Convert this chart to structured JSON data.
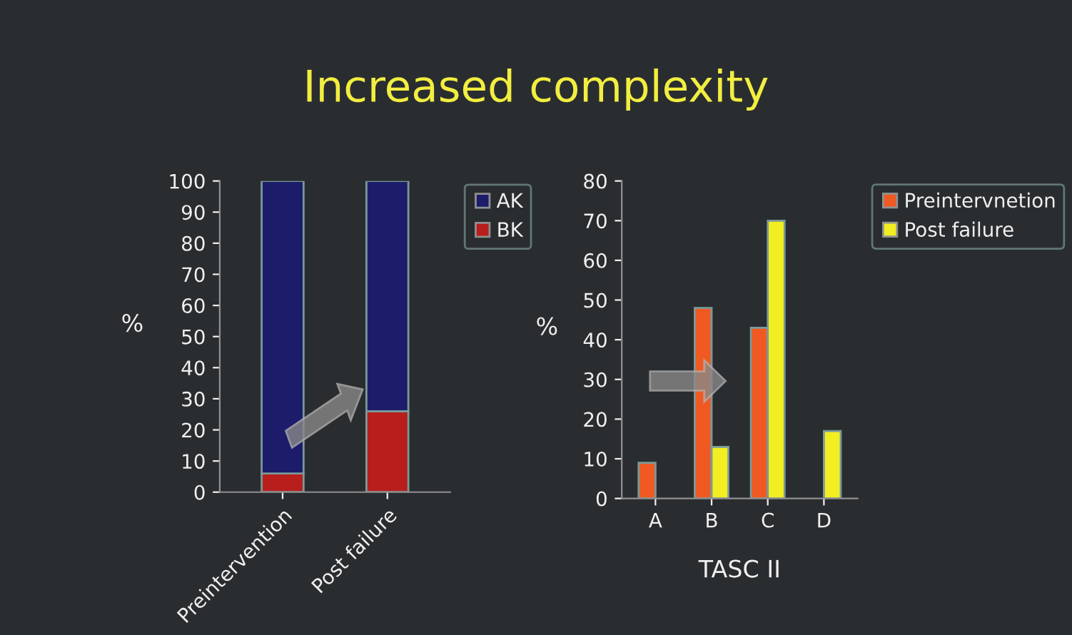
{
  "chart_data": [
    {
      "type": "bar",
      "title": "Increased complexity",
      "stacked": true,
      "ylabel": "%",
      "categories": [
        "Preintervention",
        "Post failure"
      ],
      "series": [
        {
          "name": "BK",
          "color": "#b81e1c",
          "values": [
            6,
            26
          ]
        },
        {
          "name": "AK",
          "color": "#1c1c6a",
          "values": [
            94,
            74
          ]
        }
      ],
      "ylim": [
        0,
        100
      ],
      "yticks": [
        0,
        10,
        20,
        30,
        40,
        50,
        60,
        70,
        80,
        90,
        100
      ],
      "grid": false,
      "legend": "top right"
    },
    {
      "type": "bar",
      "ylabel": "%",
      "xlabel": "TASC II",
      "categories": [
        "A",
        "B",
        "C",
        "D"
      ],
      "series": [
        {
          "name": "Preintervnetion",
          "color": "#f05a22",
          "values": [
            9,
            48,
            43,
            null
          ]
        },
        {
          "name": "Post failure",
          "color": "#f2ee22",
          "values": [
            null,
            13,
            70,
            17
          ]
        }
      ],
      "ylim": [
        0,
        80
      ],
      "yticks": [
        0,
        10,
        20,
        30,
        40,
        50,
        60,
        70,
        80
      ],
      "grid": false,
      "legend": "top right"
    }
  ]
}
